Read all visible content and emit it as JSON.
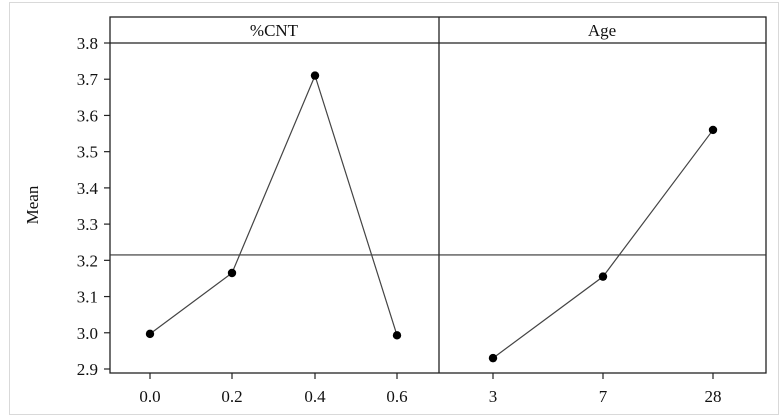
{
  "chart_data": {
    "type": "line",
    "ylabel": "Mean",
    "ylim": [
      2.88,
      3.83
    ],
    "yticks": [
      2.9,
      3.0,
      3.1,
      3.2,
      3.3,
      3.4,
      3.5,
      3.6,
      3.7,
      3.8
    ],
    "ytick_labels": [
      "2.9",
      "3.0",
      "3.1",
      "3.2",
      "3.3",
      "3.4",
      "3.5",
      "3.6",
      "3.7",
      "3.8"
    ],
    "reference_line": 3.215,
    "grid": false,
    "line_color": "#444444",
    "marker_color": "#000000",
    "panels": [
      {
        "title": "%CNT",
        "categories": [
          "0.0",
          "0.2",
          "0.4",
          "0.6"
        ],
        "values": [
          2.997,
          3.165,
          3.71,
          2.993
        ]
      },
      {
        "title": "Age",
        "categories": [
          "3",
          "7",
          "28"
        ],
        "values": [
          2.93,
          3.155,
          3.56
        ]
      }
    ]
  }
}
